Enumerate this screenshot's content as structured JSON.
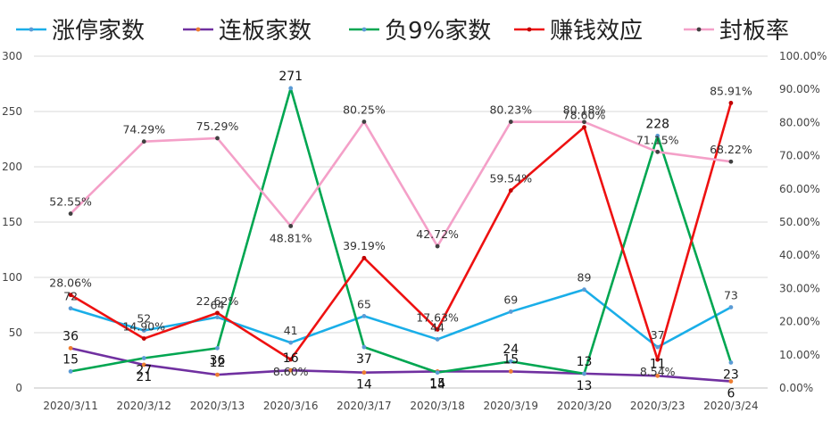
{
  "chart_data": {
    "type": "line",
    "title": "",
    "categories": [
      "2020/3/11",
      "2020/3/12",
      "2020/3/13",
      "2020/3/16",
      "2020/3/17",
      "2020/3/18",
      "2020/3/19",
      "2020/3/20",
      "2020/3/23",
      "2020/3/24"
    ],
    "left_axis": {
      "ylim": [
        0,
        300
      ],
      "ticks": [
        "0",
        "50",
        "100",
        "150",
        "200",
        "250",
        "300"
      ]
    },
    "right_axis": {
      "ylim": [
        0,
        100
      ],
      "ticks": [
        "0.00%",
        "10.00%",
        "20.00%",
        "30.00%",
        "40.00%",
        "50.00%",
        "60.00%",
        "70.00%",
        "80.00%",
        "90.00%",
        "100.00%"
      ]
    },
    "series": [
      {
        "name": "涨停家数",
        "axis": "left",
        "color": "#1AAEE8",
        "values": [
          72,
          52,
          64,
          41,
          65,
          44,
          69,
          89,
          37,
          73
        ],
        "labels": [
          "72",
          "52",
          "64",
          "41",
          "65",
          "44",
          "69",
          "89",
          "37",
          "73"
        ]
      },
      {
        "name": "连板家数",
        "axis": "left",
        "color": "#7030A0",
        "values": [
          36,
          21,
          12,
          16,
          14,
          15,
          15,
          13,
          11,
          6
        ],
        "labels": [
          "36",
          "21",
          "12",
          "16",
          "14",
          "15",
          "15",
          "13",
          "11",
          "6"
        ]
      },
      {
        "name": "负9%家数",
        "axis": "left",
        "color": "#00A651",
        "values": [
          15,
          27,
          36,
          271,
          37,
          14,
          24,
          13,
          228,
          23
        ],
        "labels": [
          "15",
          "27",
          "36",
          "271",
          "37",
          "14",
          "24",
          "13",
          "228",
          "23"
        ]
      },
      {
        "name": "赚钱效应",
        "axis": "right",
        "color": "#EE1111",
        "values": [
          28.06,
          14.9,
          22.62,
          8.6,
          39.19,
          17.63,
          59.54,
          78.6,
          8.54,
          85.91
        ],
        "labels": [
          "28.06%",
          "14.90%",
          "22.62%",
          "8.60%",
          "39.19%",
          "17.63%",
          "59.54%",
          "78.60%",
          "8.54%",
          "85.91%"
        ]
      },
      {
        "name": "封板率",
        "axis": "right",
        "color": "#F4A0C8",
        "values": [
          52.55,
          74.29,
          75.29,
          48.81,
          80.25,
          42.72,
          80.23,
          80.18,
          71.15,
          68.22
        ],
        "labels": [
          "52.55%",
          "74.29%",
          "75.29%",
          "48.81%",
          "80.25%",
          "42.72%",
          "80.23%",
          "80.18%",
          "71.15%",
          "68.22%"
        ]
      }
    ],
    "grid": true,
    "legend_position": "top"
  }
}
